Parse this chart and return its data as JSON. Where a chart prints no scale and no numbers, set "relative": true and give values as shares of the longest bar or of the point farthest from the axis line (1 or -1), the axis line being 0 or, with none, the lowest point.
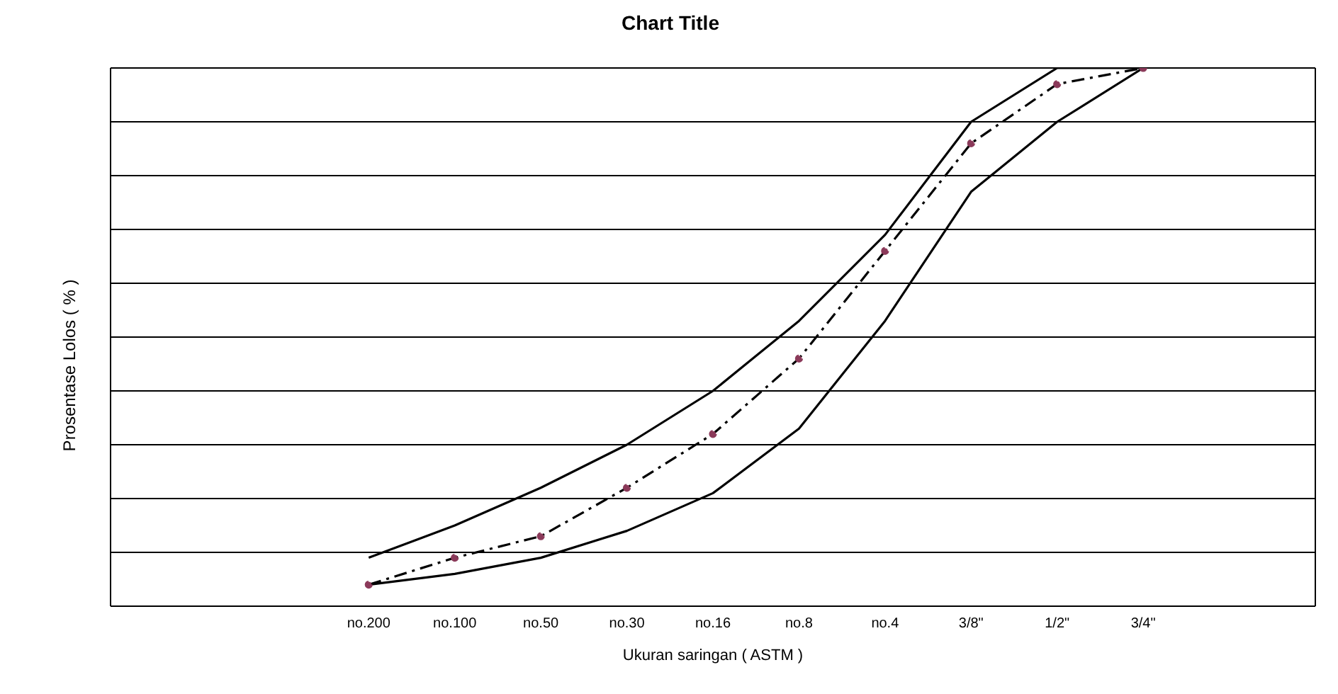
{
  "chart_data": {
    "type": "line",
    "title": "Chart Title",
    "xlabel": "Ukuran saringan ( ASTM )",
    "ylabel": "Prosentase Lolos ( % )",
    "relative": true,
    "grid": "y",
    "categories": [
      null,
      null,
      null,
      "no.200",
      "no.100",
      "no.50",
      "no.30",
      "no.16",
      "no.8",
      "no.4",
      "3/8\"",
      "1/2\"",
      "3/4\"",
      null,
      null
    ],
    "series": [
      {
        "color": "#000000",
        "line_style": "solid",
        "marker": "none",
        "values": [
          null,
          null,
          null,
          0.09,
          0.15,
          0.22,
          0.3,
          0.4,
          0.53,
          0.69,
          0.9,
          1,
          1,
          null,
          null
        ]
      },
      {
        "color": "#000000",
        "line_style": "solid",
        "marker": "none",
        "values": [
          null,
          null,
          null,
          0.04,
          0.06,
          0.09,
          0.14,
          0.21,
          0.33,
          0.53,
          0.77,
          0.9,
          1,
          null,
          null
        ]
      },
      {
        "color": "#000000",
        "line_style": "dashed",
        "marker": "circle",
        "values": [
          null,
          null,
          null,
          0.04,
          0.09,
          0.13,
          0.22,
          0.32,
          0.46,
          0.66,
          0.86,
          0.97,
          1,
          null,
          null
        ]
      }
    ]
  }
}
